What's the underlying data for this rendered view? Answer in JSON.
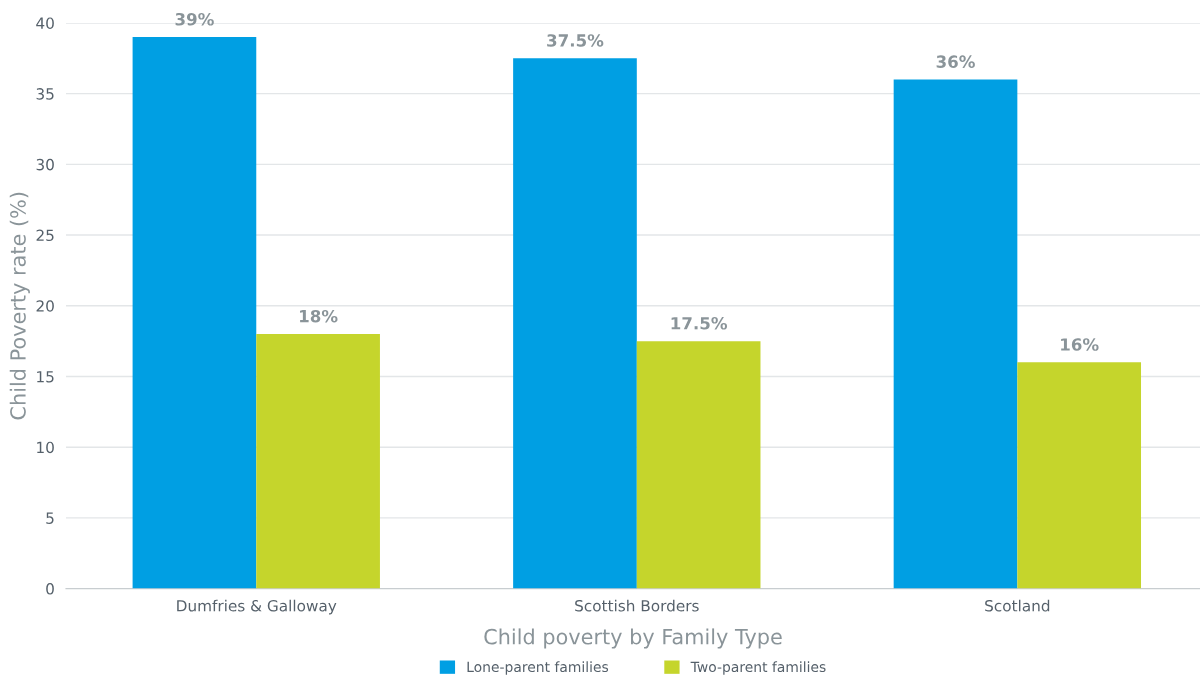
{
  "chart_data": {
    "type": "bar",
    "categories": [
      "Dumfries & Galloway",
      "Scottish Borders",
      "Scotland"
    ],
    "series": [
      {
        "name": "Lone-parent families",
        "color": "#009fe3",
        "values": [
          39,
          37.5,
          36
        ],
        "value_labels": [
          "39%",
          "37.5%",
          "36%"
        ]
      },
      {
        "name": "Two-parent families",
        "color": "#c5d52c",
        "values": [
          18,
          17.5,
          16
        ],
        "value_labels": [
          "18%",
          "17.5%",
          "16%"
        ]
      }
    ],
    "xlabel": "Child poverty by Family Type",
    "ylabel": "Child Poverty rate (%)",
    "ylim": [
      0,
      40
    ],
    "yticks": [
      0,
      5,
      10,
      15,
      20,
      25,
      30,
      35,
      40
    ],
    "grid": "y",
    "legend": "bottom"
  }
}
